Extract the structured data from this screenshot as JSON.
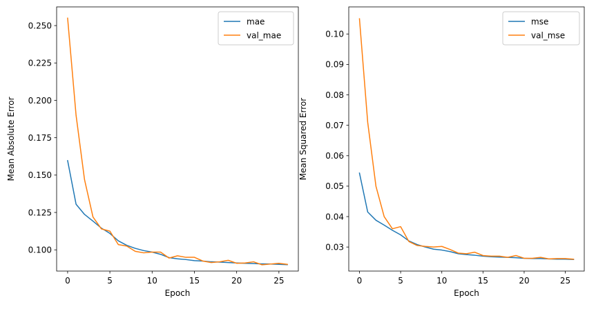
{
  "chart_data": [
    {
      "type": "line",
      "xlabel": "Epoch",
      "ylabel": "Mean Absolute Error",
      "xlim": [
        -1.3,
        27.3
      ],
      "ylim": [
        0.0858,
        0.2625
      ],
      "xticks": [
        0,
        5,
        10,
        15,
        20,
        25
      ],
      "xtick_labels": [
        "0",
        "5",
        "10",
        "15",
        "20",
        "25"
      ],
      "yticks": [
        0.1,
        0.125,
        0.15,
        0.175,
        0.2,
        0.225,
        0.25
      ],
      "ytick_labels": [
        "0.100",
        "0.125",
        "0.150",
        "0.175",
        "0.200",
        "0.225",
        "0.250"
      ],
      "legend_position": "top-right",
      "grid": false,
      "x": [
        0,
        1,
        2,
        3,
        4,
        5,
        6,
        7,
        8,
        9,
        10,
        11,
        12,
        13,
        14,
        15,
        16,
        17,
        18,
        19,
        20,
        21,
        22,
        23,
        24,
        25,
        26
      ],
      "series": [
        {
          "name": "mae",
          "color": "#1f77b4",
          "values": [
            0.1597,
            0.1305,
            0.1237,
            0.1192,
            0.1145,
            0.111,
            0.106,
            0.103,
            0.101,
            0.0995,
            0.0985,
            0.097,
            0.0948,
            0.094,
            0.0935,
            0.0928,
            0.0925,
            0.092,
            0.0918,
            0.0915,
            0.0912,
            0.091,
            0.0908,
            0.0906,
            0.0905,
            0.0903,
            0.0901
          ]
        },
        {
          "name": "val_mae",
          "color": "#ff7f0e",
          "values": [
            0.255,
            0.19,
            0.147,
            0.122,
            0.114,
            0.1125,
            0.1035,
            0.1025,
            0.099,
            0.098,
            0.0985,
            0.0985,
            0.0945,
            0.096,
            0.095,
            0.095,
            0.0925,
            0.0915,
            0.092,
            0.093,
            0.091,
            0.0912,
            0.092,
            0.09,
            0.0905,
            0.091,
            0.0903
          ]
        }
      ]
    },
    {
      "type": "line",
      "xlabel": "Epoch",
      "ylabel": "Mean Squared Error",
      "xlim": [
        -1.3,
        27.3
      ],
      "ylim": [
        0.0221,
        0.1089
      ],
      "xticks": [
        0,
        5,
        10,
        15,
        20,
        25
      ],
      "xtick_labels": [
        "0",
        "5",
        "10",
        "15",
        "20",
        "25"
      ],
      "yticks": [
        0.03,
        0.04,
        0.05,
        0.06,
        0.07,
        0.08,
        0.09,
        0.1
      ],
      "ytick_labels": [
        "0.03",
        "0.04",
        "0.05",
        "0.06",
        "0.07",
        "0.08",
        "0.09",
        "0.10"
      ],
      "legend_position": "top-right",
      "grid": false,
      "x": [
        0,
        1,
        2,
        3,
        4,
        5,
        6,
        7,
        8,
        9,
        10,
        11,
        12,
        13,
        14,
        15,
        16,
        17,
        18,
        19,
        20,
        21,
        22,
        23,
        24,
        25,
        26
      ],
      "series": [
        {
          "name": "mse",
          "color": "#1f77b4",
          "values": [
            0.0543,
            0.0415,
            0.0388,
            0.0372,
            0.0355,
            0.034,
            0.032,
            0.0308,
            0.03,
            0.0293,
            0.029,
            0.0285,
            0.0278,
            0.0275,
            0.0273,
            0.027,
            0.0268,
            0.0267,
            0.0266,
            0.0265,
            0.0263,
            0.0262,
            0.0262,
            0.0261,
            0.026,
            0.026,
            0.0259
          ]
        },
        {
          "name": "val_mse",
          "color": "#ff7f0e",
          "values": [
            0.105,
            0.071,
            0.05,
            0.04,
            0.036,
            0.0367,
            0.0318,
            0.0305,
            0.0302,
            0.03,
            0.0302,
            0.0292,
            0.028,
            0.0278,
            0.0283,
            0.0272,
            0.027,
            0.027,
            0.0266,
            0.0272,
            0.0263,
            0.0263,
            0.0266,
            0.0261,
            0.0262,
            0.0262,
            0.026
          ]
        }
      ]
    }
  ]
}
